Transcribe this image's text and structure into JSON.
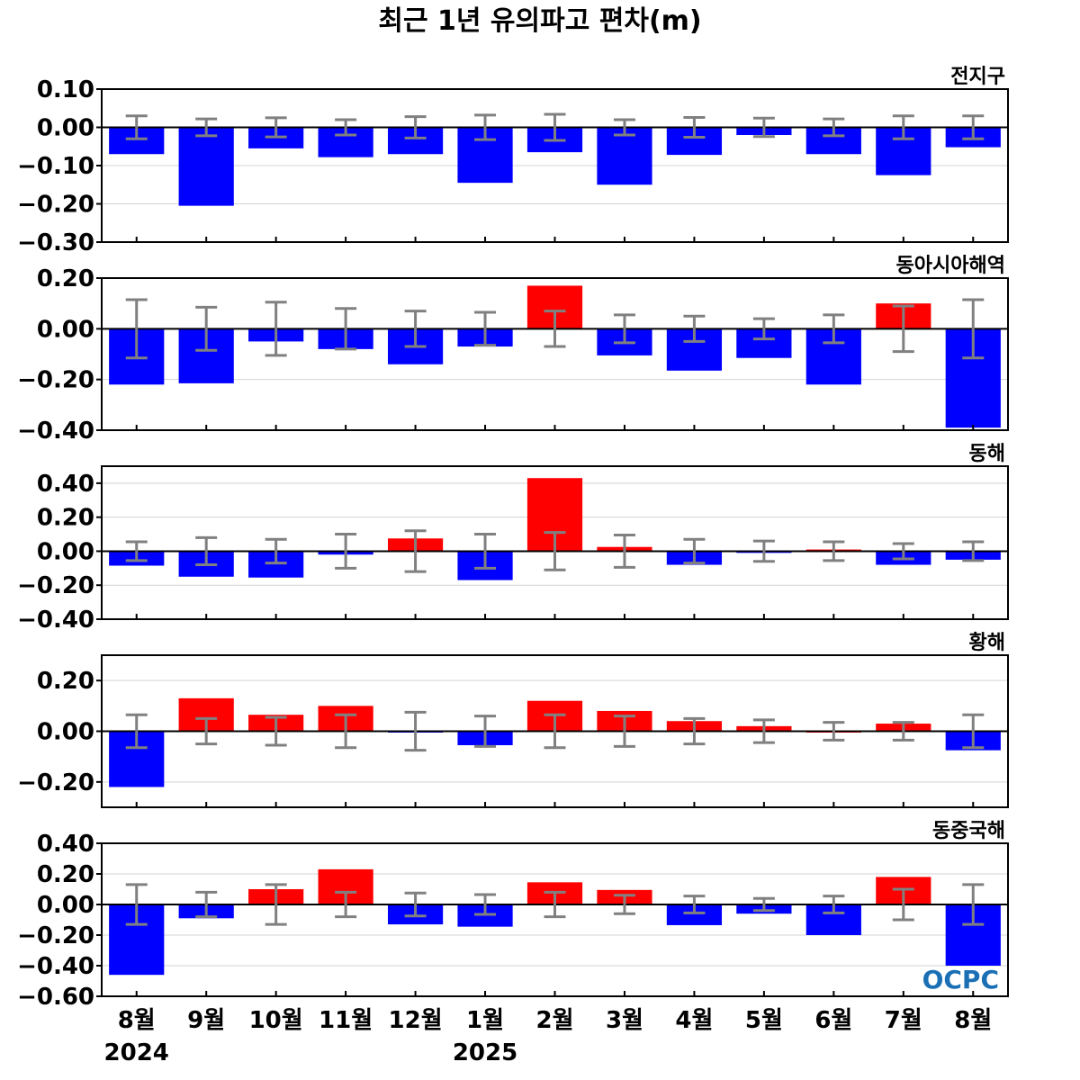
{
  "title": "최근 1년 유의파고 편차(m)",
  "logo": "OCPC",
  "colors": {
    "positive": "#ff0000",
    "negative": "#0000ff",
    "errorbar": "#808080",
    "grid": "#d3d3d3",
    "zero_line": "#000000"
  },
  "chart_data": [
    {
      "type": "bar",
      "region": "전지구",
      "categories": [
        "8월",
        "9월",
        "10월",
        "11월",
        "12월",
        "1월",
        "2월",
        "3월",
        "4월",
        "5월",
        "6월",
        "7월",
        "8월"
      ],
      "values": [
        -0.07,
        -0.205,
        -0.055,
        -0.078,
        -0.07,
        -0.145,
        -0.065,
        -0.15,
        -0.072,
        -0.02,
        -0.07,
        -0.125,
        -0.052
      ],
      "error_half": [
        0.03,
        0.022,
        0.025,
        0.02,
        0.028,
        0.032,
        0.034,
        0.02,
        0.026,
        0.024,
        0.022,
        0.03,
        0.03
      ],
      "ylim": [
        -0.3,
        0.1
      ],
      "yticks": [
        0.1,
        0.0,
        -0.1,
        -0.2,
        -0.3
      ],
      "ytick_labels": [
        "0.10",
        "0.00",
        "−0.10",
        "−0.20",
        "−0.30"
      ]
    },
    {
      "type": "bar",
      "region": "동아시아해역",
      "categories": [
        "8월",
        "9월",
        "10월",
        "11월",
        "12월",
        "1월",
        "2월",
        "3월",
        "4월",
        "5월",
        "6월",
        "7월",
        "8월"
      ],
      "values": [
        -0.22,
        -0.215,
        -0.05,
        -0.08,
        -0.14,
        -0.07,
        0.17,
        -0.105,
        -0.165,
        -0.115,
        -0.22,
        0.1,
        -0.39
      ],
      "error_half": [
        0.115,
        0.085,
        0.105,
        0.08,
        0.07,
        0.065,
        0.07,
        0.055,
        0.05,
        0.04,
        0.055,
        0.09,
        0.115
      ],
      "ylim": [
        -0.4,
        0.2
      ],
      "yticks": [
        0.2,
        0.0,
        -0.2,
        -0.4
      ],
      "ytick_labels": [
        "0.20",
        "0.00",
        "−0.20",
        "−0.40"
      ]
    },
    {
      "type": "bar",
      "region": "동해",
      "categories": [
        "8월",
        "9월",
        "10월",
        "11월",
        "12월",
        "1월",
        "2월",
        "3월",
        "4월",
        "5월",
        "6월",
        "7월",
        "8월"
      ],
      "values": [
        -0.085,
        -0.15,
        -0.155,
        -0.02,
        0.075,
        -0.17,
        0.43,
        0.025,
        -0.08,
        -0.01,
        0.01,
        -0.08,
        -0.05
      ],
      "error_half": [
        0.055,
        0.08,
        0.07,
        0.1,
        0.12,
        0.1,
        0.11,
        0.095,
        0.07,
        0.06,
        0.055,
        0.045,
        0.055
      ],
      "ylim": [
        -0.4,
        0.5
      ],
      "yticks": [
        0.4,
        0.2,
        0.0,
        -0.2,
        -0.4
      ],
      "ytick_labels": [
        "0.40",
        "0.20",
        "0.00",
        "−0.20",
        "−0.40"
      ]
    },
    {
      "type": "bar",
      "region": "황해",
      "categories": [
        "8월",
        "9월",
        "10월",
        "11월",
        "12월",
        "1월",
        "2월",
        "3월",
        "4월",
        "5월",
        "6월",
        "7월",
        "8월"
      ],
      "values": [
        -0.22,
        0.13,
        0.065,
        0.1,
        -0.005,
        -0.055,
        0.12,
        0.08,
        0.04,
        0.02,
        0.0,
        0.03,
        -0.075
      ],
      "error_half": [
        0.065,
        0.05,
        0.055,
        0.065,
        0.075,
        0.06,
        0.065,
        0.06,
        0.05,
        0.045,
        0.035,
        0.035,
        0.065
      ],
      "ylim": [
        -0.3,
        0.3
      ],
      "yticks": [
        0.2,
        0.0,
        -0.2
      ],
      "ytick_labels": [
        "0.20",
        "0.00",
        "−0.20"
      ]
    },
    {
      "type": "bar",
      "region": "동중국해",
      "categories": [
        "8월",
        "9월",
        "10월",
        "11월",
        "12월",
        "1월",
        "2월",
        "3월",
        "4월",
        "5월",
        "6월",
        "7월",
        "8월"
      ],
      "values": [
        -0.46,
        -0.09,
        0.1,
        0.23,
        -0.13,
        -0.145,
        0.145,
        0.095,
        -0.135,
        -0.06,
        -0.2,
        0.18,
        -0.4
      ],
      "error_half": [
        0.13,
        0.08,
        0.13,
        0.08,
        0.075,
        0.065,
        0.08,
        0.06,
        0.055,
        0.04,
        0.055,
        0.1,
        0.13
      ],
      "ylim": [
        -0.6,
        0.4
      ],
      "yticks": [
        0.4,
        0.2,
        0.0,
        -0.2,
        -0.4,
        -0.6
      ],
      "ytick_labels": [
        "0.40",
        "0.20",
        "0.00",
        "−0.20",
        "−0.40",
        "−0.60"
      ]
    }
  ],
  "x_axis": {
    "month_labels": [
      "8월",
      "9월",
      "10월",
      "11월",
      "12월",
      "1월",
      "2월",
      "3월",
      "4월",
      "5월",
      "6월",
      "7월",
      "8월"
    ],
    "year_labels": [
      {
        "text": "2024",
        "index": 0
      },
      {
        "text": "2025",
        "index": 5
      }
    ]
  }
}
